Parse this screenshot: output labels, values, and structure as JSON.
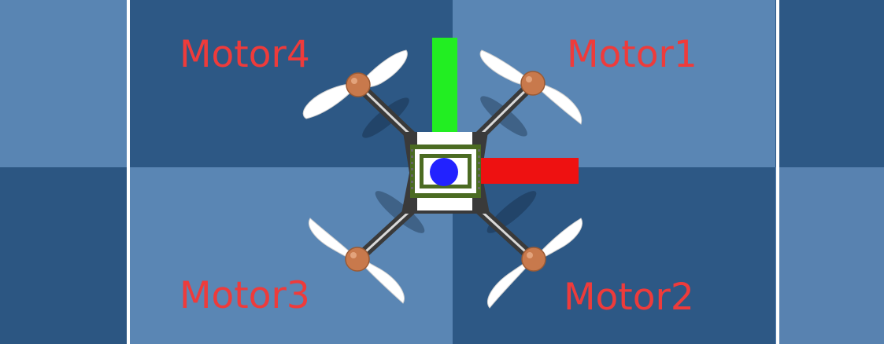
{
  "labels": {
    "motor1": "Motor1",
    "motor2": "Motor2",
    "motor3": "Motor3",
    "motor4": "Motor4"
  },
  "colors": {
    "label": "#ee3b3b",
    "floor_dark": "#2f5a86",
    "floor_light": "#5985b3",
    "boundary_line": "#ffffff",
    "y_axis": "#22ee22",
    "x_axis": "#ee1111",
    "center_marker": "#2222ff",
    "motor_hub": "#c8794c",
    "frame": "#3a3a3a",
    "pcb": "#4b6b22",
    "propeller": "#ffffff"
  },
  "icons": {
    "drone": "quadcopter-icon",
    "propeller": "propeller-icon",
    "axis_x": "x-axis-arrow",
    "axis_y": "y-axis-arrow"
  }
}
